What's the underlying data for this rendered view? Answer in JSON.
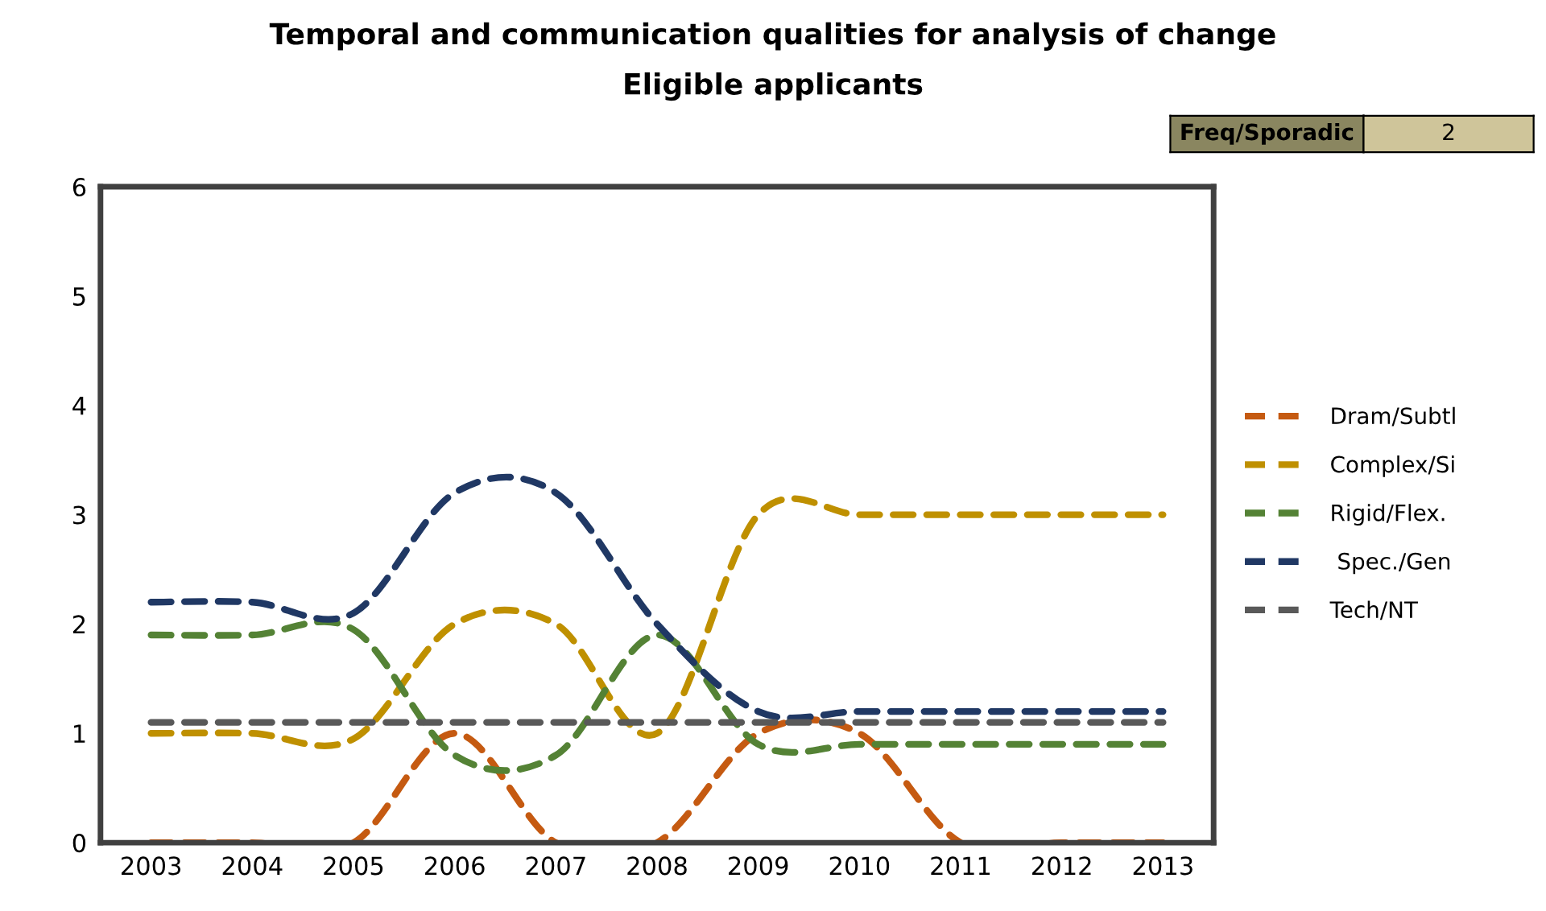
{
  "chart_data": {
    "type": "line",
    "title": "Temporal and communication qualities for analysis of change",
    "subtitle": "Eligible applicants",
    "annotations": [
      "Freq/Sporadic",
      "2"
    ],
    "categories": [
      "2003",
      "2004",
      "2005",
      "2006",
      "2007",
      "2008",
      "2009",
      "2010",
      "2011",
      "2012",
      "2013"
    ],
    "series": [
      {
        "name": "Dram/Subtl",
        "color": "#c55a11",
        "values": [
          0,
          0,
          0,
          1,
          0,
          0,
          1,
          1,
          0,
          0,
          0
        ]
      },
      {
        "name": "Complex/Si",
        "color": "#bf9000",
        "values": [
          1,
          1,
          0.95,
          2,
          2,
          1,
          3,
          3,
          3,
          3,
          3
        ]
      },
      {
        "name": "Rigid/Flex.",
        "color": "#548235",
        "values": [
          1.9,
          1.9,
          1.95,
          0.8,
          0.8,
          1.9,
          0.9,
          0.9,
          0.9,
          0.9,
          0.9
        ]
      },
      {
        "name": " Spec./Gen",
        "color": "#203864",
        "values": [
          2.2,
          2.2,
          2.1,
          3.2,
          3.2,
          2.0,
          1.2,
          1.2,
          1.2,
          1.2,
          1.2
        ]
      },
      {
        "name": "Tech/NT",
        "color": "#595959",
        "values": [
          1.1,
          1.1,
          1.1,
          1.1,
          1.1,
          1.1,
          1.1,
          1.1,
          1.1,
          1.1,
          1.1
        ]
      }
    ],
    "ylim": [
      0,
      6
    ],
    "yticks": [
      0,
      1,
      2,
      3,
      4,
      5,
      6
    ],
    "grid": false,
    "legend": "right",
    "marker": "none",
    "line_style": "dashed"
  }
}
